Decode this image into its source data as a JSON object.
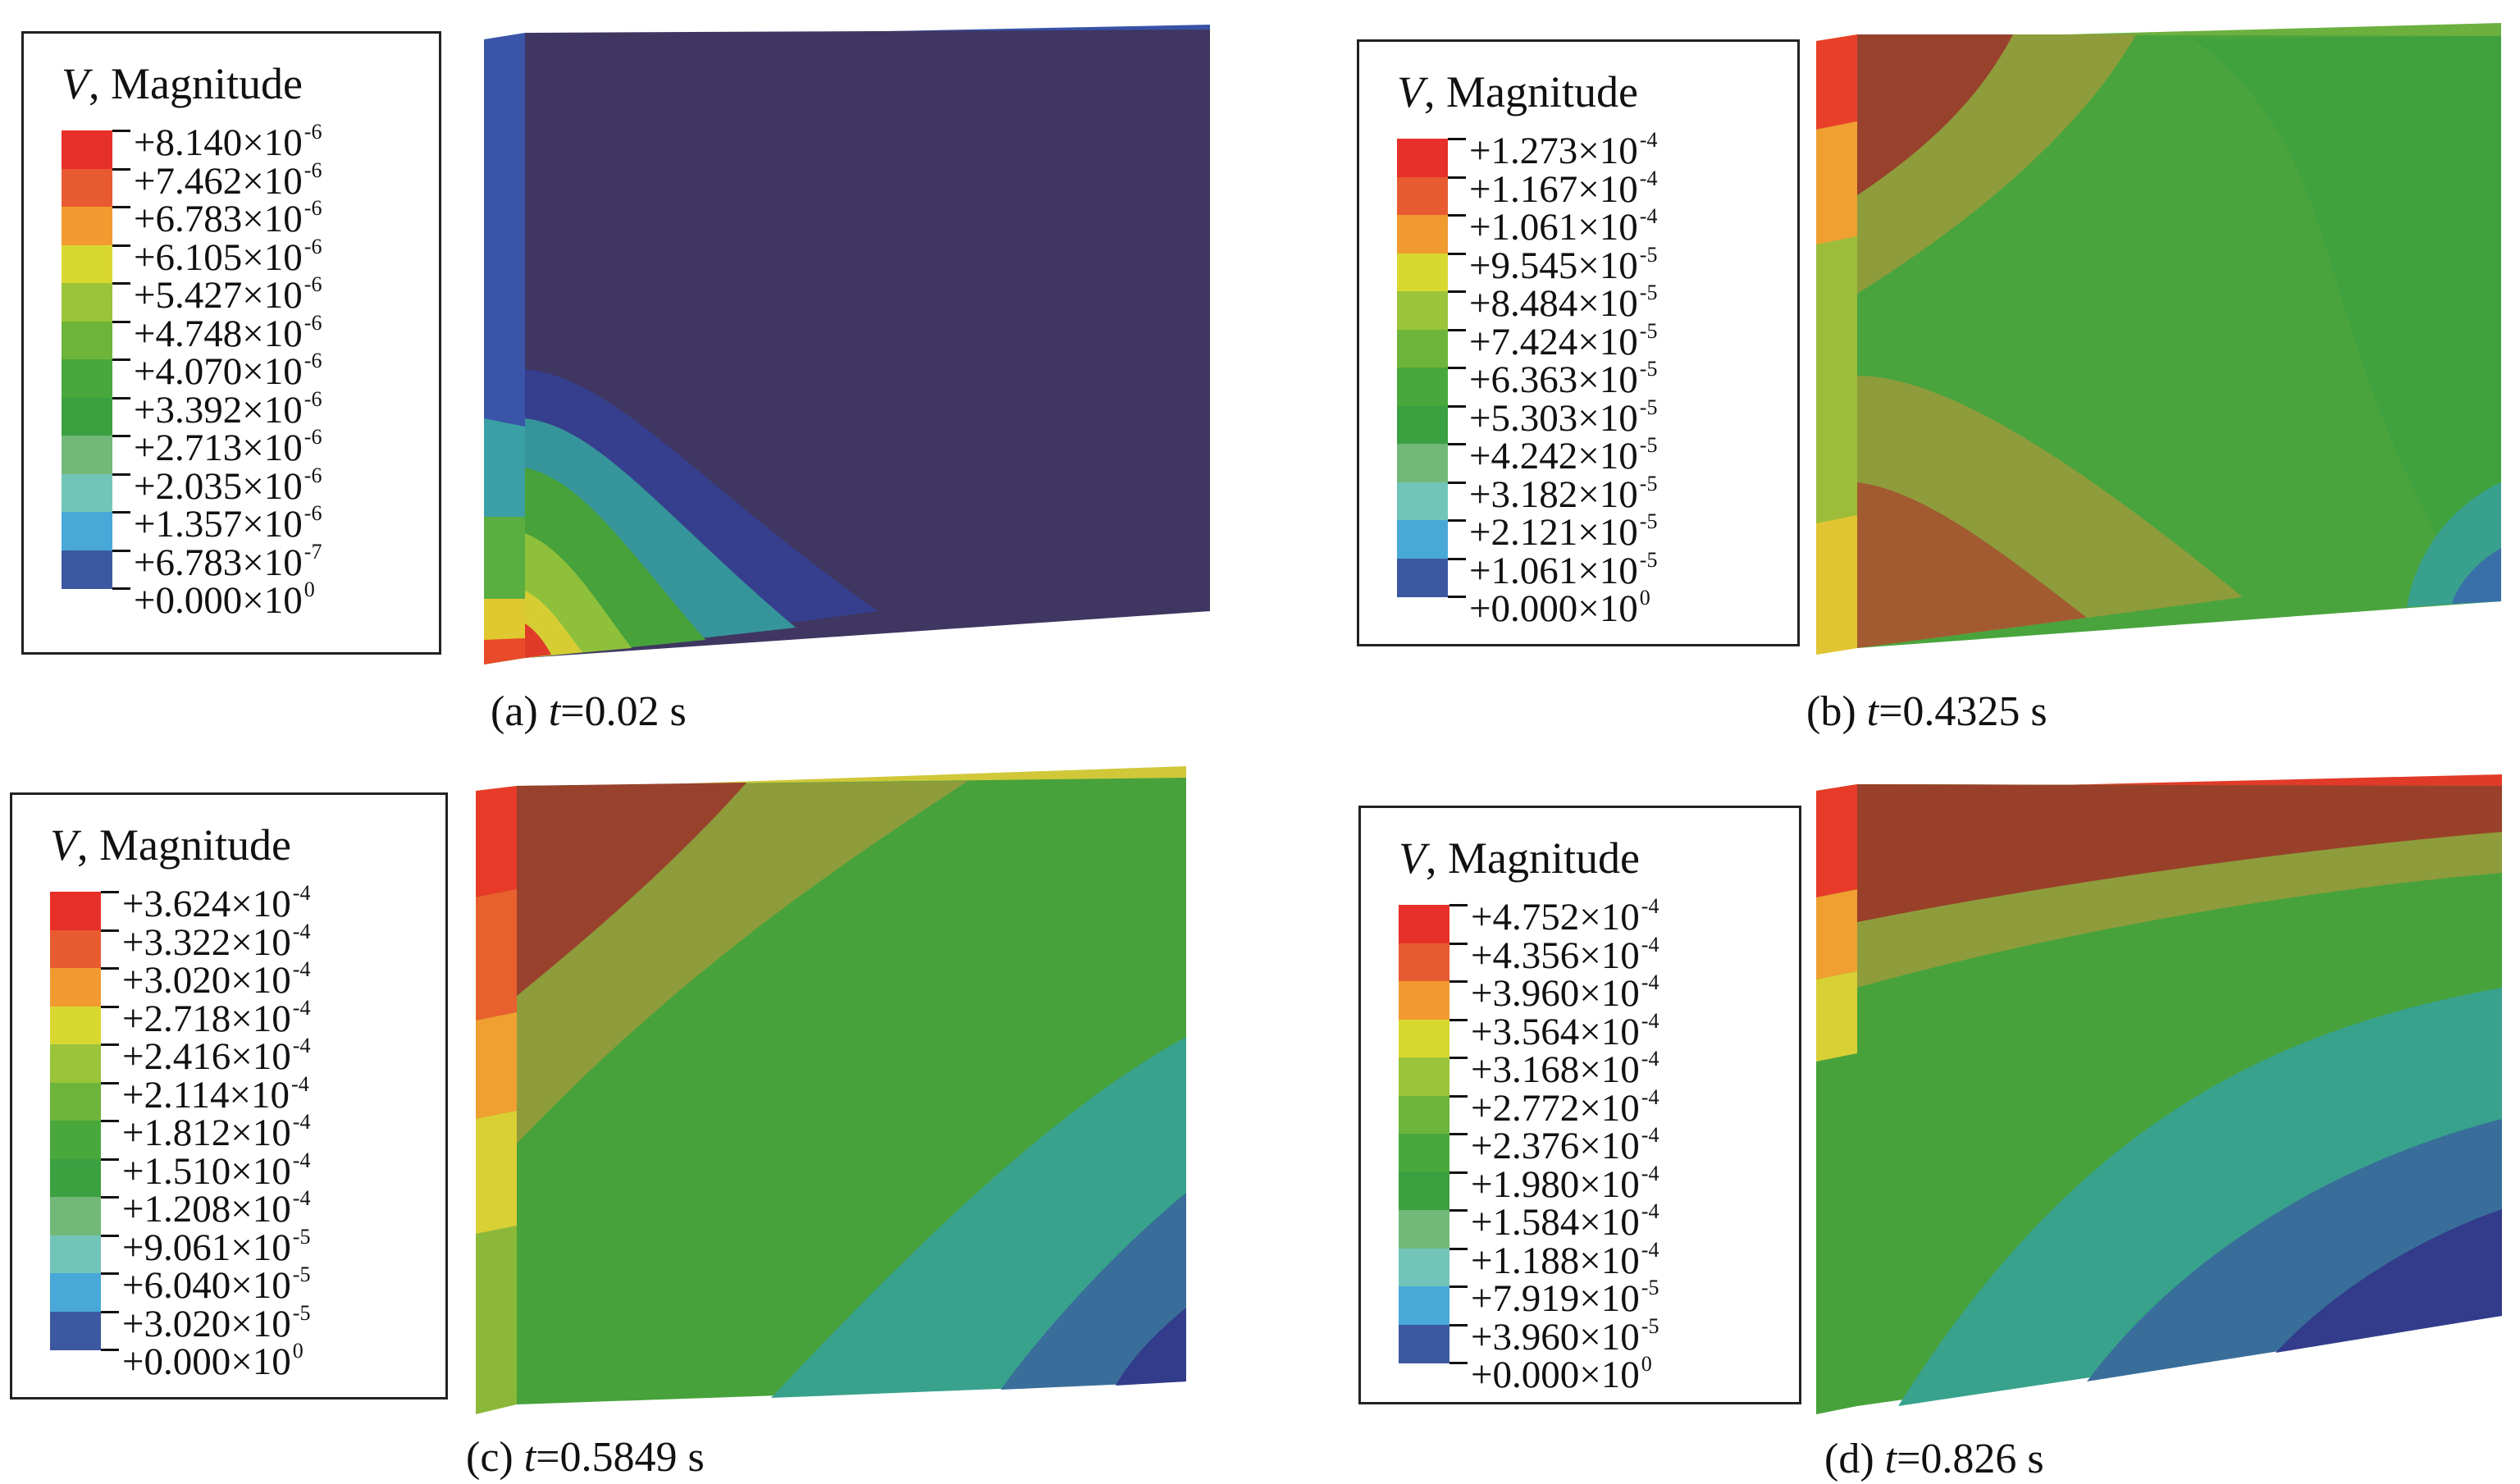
{
  "panels": [
    {
      "id": "a",
      "caption_prefix": "(a) ",
      "caption_var": "t",
      "caption_rest": "=0.02 s",
      "legend_title_var": "V",
      "legend_title_rest": ", Magnitude",
      "legend_values": [
        {
          "m": "+8.140",
          "e": "-6"
        },
        {
          "m": "+7.462",
          "e": "-6"
        },
        {
          "m": "+6.783",
          "e": "-6"
        },
        {
          "m": "+6.105",
          "e": "-6"
        },
        {
          "m": "+5.427",
          "e": "-6"
        },
        {
          "m": "+4.748",
          "e": "-6"
        },
        {
          "m": "+4.070",
          "e": "-6"
        },
        {
          "m": "+3.392",
          "e": "-6"
        },
        {
          "m": "+2.713",
          "e": "-6"
        },
        {
          "m": "+2.035",
          "e": "-6"
        },
        {
          "m": "+1.357",
          "e": "-6"
        },
        {
          "m": "+6.783",
          "e": "-7"
        },
        {
          "m": "+0.000",
          "e": "0"
        }
      ]
    },
    {
      "id": "b",
      "caption_prefix": "(b) ",
      "caption_var": "t",
      "caption_rest": "=0.4325 s",
      "legend_title_var": "V",
      "legend_title_rest": ", Magnitude",
      "legend_values": [
        {
          "m": "+1.273",
          "e": "-4"
        },
        {
          "m": "+1.167",
          "e": "-4"
        },
        {
          "m": "+1.061",
          "e": "-4"
        },
        {
          "m": "+9.545",
          "e": "-5"
        },
        {
          "m": "+8.484",
          "e": "-5"
        },
        {
          "m": "+7.424",
          "e": "-5"
        },
        {
          "m": "+6.363",
          "e": "-5"
        },
        {
          "m": "+5.303",
          "e": "-5"
        },
        {
          "m": "+4.242",
          "e": "-5"
        },
        {
          "m": "+3.182",
          "e": "-5"
        },
        {
          "m": "+2.121",
          "e": "-5"
        },
        {
          "m": "+1.061",
          "e": "-5"
        },
        {
          "m": "+0.000",
          "e": "0"
        }
      ]
    },
    {
      "id": "c",
      "caption_prefix": "(c) ",
      "caption_var": "t",
      "caption_rest": "=0.5849 s",
      "legend_title_var": "V",
      "legend_title_rest": ", Magnitude",
      "legend_values": [
        {
          "m": "+3.624",
          "e": "-4"
        },
        {
          "m": "+3.322",
          "e": "-4"
        },
        {
          "m": "+3.020",
          "e": "-4"
        },
        {
          "m": "+2.718",
          "e": "-4"
        },
        {
          "m": "+2.416",
          "e": "-4"
        },
        {
          "m": "+2.114",
          "e": "-4"
        },
        {
          "m": "+1.812",
          "e": "-4"
        },
        {
          "m": "+1.510",
          "e": "-4"
        },
        {
          "m": "+1.208",
          "e": "-4"
        },
        {
          "m": "+9.061",
          "e": "-5"
        },
        {
          "m": "+6.040",
          "e": "-5"
        },
        {
          "m": "+3.020",
          "e": "-5"
        },
        {
          "m": "+0.000",
          "e": "0"
        }
      ]
    },
    {
      "id": "d",
      "caption_prefix": "(d) ",
      "caption_var": "t",
      "caption_rest": "=0.826 s",
      "legend_title_var": "V",
      "legend_title_rest": ", Magnitude",
      "legend_values": [
        {
          "m": "+4.752",
          "e": "-4"
        },
        {
          "m": "+4.356",
          "e": "-4"
        },
        {
          "m": "+3.960",
          "e": "-4"
        },
        {
          "m": "+3.564",
          "e": "-4"
        },
        {
          "m": "+3.168",
          "e": "-4"
        },
        {
          "m": "+2.772",
          "e": "-4"
        },
        {
          "m": "+2.376",
          "e": "-4"
        },
        {
          "m": "+1.980",
          "e": "-4"
        },
        {
          "m": "+1.584",
          "e": "-4"
        },
        {
          "m": "+1.188",
          "e": "-4"
        },
        {
          "m": "+7.919",
          "e": "-5"
        },
        {
          "m": "+3.960",
          "e": "-5"
        },
        {
          "m": "+0.000",
          "e": "0"
        }
      ]
    }
  ],
  "times_symbol": "×",
  "colormap": [
    "#e8302a",
    "#e85a30",
    "#f09a30",
    "#d8d830",
    "#9cc43a",
    "#6cb43a",
    "#48a83c",
    "#3aa040",
    "#72b878",
    "#70c4b8",
    "#48a8d8",
    "#3c58a0",
    "#3a4898"
  ],
  "block_colors": {
    "dark_navy": "#3f3560",
    "navy": "#323c8a",
    "blue": "#3a58a8",
    "teal": "#36a08c",
    "green": "#48a23c",
    "olive": "#8ea03a",
    "brown": "#98402a",
    "red": "#e03828"
  }
}
